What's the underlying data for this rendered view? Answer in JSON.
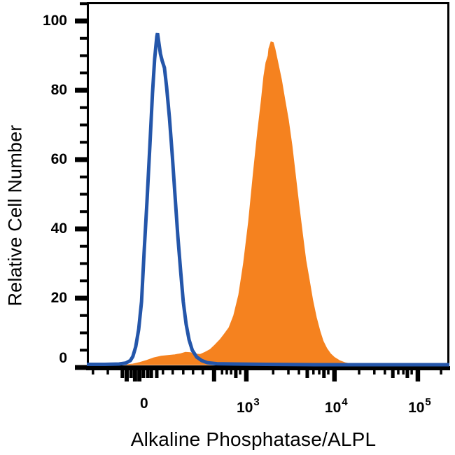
{
  "colors": {
    "blue": "#2456AA",
    "orange": "#F5821F",
    "axis": "#000000",
    "background": "#FFFFFF"
  },
  "y_axis": {
    "title": "Relative Cell Number",
    "ticks": [
      {
        "label": "100",
        "value": 100
      },
      {
        "label": "80",
        "value": 80
      },
      {
        "label": "60",
        "value": 60
      },
      {
        "label": "40",
        "value": 40
      },
      {
        "label": "20",
        "value": 20
      },
      {
        "label": "0",
        "value": 0
      }
    ],
    "minor_tick_step": 5
  },
  "x_axis": {
    "title": "Alkaline Phosphatase/ALPL",
    "scale": "biexponential",
    "major_ticks": [
      {
        "base": "0",
        "sup": "",
        "pos": 0.158,
        "tick": false
      },
      {
        "base": "10",
        "sup": "3",
        "pos": 0.44,
        "tick": true
      },
      {
        "base": "10",
        "sup": "4",
        "pos": 0.683,
        "tick": true
      },
      {
        "base": "10",
        "sup": "5",
        "pos": 0.913,
        "tick": true
      }
    ],
    "minor_ticks": [
      [
        0.017,
        0
      ],
      [
        0.058,
        0
      ],
      [
        0.098,
        1
      ],
      [
        0.11,
        2
      ],
      [
        0.122,
        1
      ],
      [
        0.133,
        2
      ],
      [
        0.145,
        2
      ],
      [
        0.156,
        1
      ],
      [
        0.168,
        1
      ],
      [
        0.178,
        1
      ],
      [
        0.193,
        1
      ],
      [
        0.21,
        0
      ],
      [
        0.237,
        0
      ],
      [
        0.266,
        0
      ],
      [
        0.293,
        0
      ],
      [
        0.32,
        0
      ],
      [
        0.351,
        2
      ],
      [
        0.373,
        0
      ],
      [
        0.386,
        0
      ],
      [
        0.398,
        0
      ],
      [
        0.411,
        1
      ],
      [
        0.423,
        0
      ],
      [
        0.514,
        0
      ],
      [
        0.556,
        0
      ],
      [
        0.585,
        0
      ],
      [
        0.608,
        1
      ],
      [
        0.625,
        0
      ],
      [
        0.641,
        0
      ],
      [
        0.654,
        1
      ],
      [
        0.666,
        0
      ],
      [
        0.751,
        0
      ],
      [
        0.793,
        0
      ],
      [
        0.822,
        0
      ],
      [
        0.844,
        1
      ],
      [
        0.859,
        0
      ],
      [
        0.873,
        0
      ],
      [
        0.884,
        1
      ],
      [
        0.896,
        0
      ],
      [
        0.977,
        0
      ]
    ]
  },
  "chart_data": {
    "type": "area",
    "title": "",
    "xlabel": "Alkaline Phosphatase/ALPL",
    "ylabel": "Relative Cell Number",
    "ylim": [
      0,
      100
    ],
    "x_scale": "biexponential; pos is fraction of axis width",
    "x_axis_landmarks": {
      "0": 0.158,
      "1e3": 0.44,
      "1e4": 0.683,
      "1e5": 0.913
    },
    "grid": false,
    "legend": false,
    "series": [
      {
        "name": "blue-open-histogram",
        "type": "line",
        "color": "#2456AA",
        "stroke_width": 5,
        "peak": {
          "pos": 0.195,
          "value": 96.5
        },
        "points": [
          [
            0.0,
            0.9
          ],
          [
            0.05,
            0.9
          ],
          [
            0.089,
            1.0
          ],
          [
            0.108,
            1.3
          ],
          [
            0.12,
            2.0
          ],
          [
            0.127,
            3.2
          ],
          [
            0.135,
            6
          ],
          [
            0.143,
            11
          ],
          [
            0.151,
            19
          ],
          [
            0.158,
            33
          ],
          [
            0.166,
            48
          ],
          [
            0.174,
            64
          ],
          [
            0.181,
            79
          ],
          [
            0.187,
            89
          ],
          [
            0.193,
            95.5
          ],
          [
            0.195,
            96.5
          ],
          [
            0.199,
            93.5
          ],
          [
            0.203,
            90.5
          ],
          [
            0.208,
            88.5
          ],
          [
            0.214,
            86.5
          ],
          [
            0.22,
            81
          ],
          [
            0.228,
            72
          ],
          [
            0.236,
            61
          ],
          [
            0.243,
            50
          ],
          [
            0.251,
            38
          ],
          [
            0.259,
            27.5
          ],
          [
            0.266,
            19
          ],
          [
            0.274,
            12.5
          ],
          [
            0.282,
            8
          ],
          [
            0.291,
            5
          ],
          [
            0.303,
            3
          ],
          [
            0.317,
            2
          ],
          [
            0.332,
            1.4
          ],
          [
            0.359,
            1.1
          ],
          [
            0.407,
            1.0
          ],
          [
            0.494,
            0.9
          ],
          [
            0.629,
            0.8
          ],
          [
            0.842,
            0.8
          ],
          [
            1.0,
            0.8
          ]
        ]
      },
      {
        "name": "orange-filled-histogram",
        "type": "filled-area",
        "color": "#F5821F",
        "peak": {
          "pos": 0.508,
          "value": 94
        },
        "points": [
          [
            0.093,
            0.0
          ],
          [
            0.108,
            0.5
          ],
          [
            0.127,
            1.0
          ],
          [
            0.147,
            1.5
          ],
          [
            0.166,
            2.1
          ],
          [
            0.185,
            2.8
          ],
          [
            0.205,
            3.3
          ],
          [
            0.224,
            3.5
          ],
          [
            0.243,
            3.7
          ],
          [
            0.259,
            4.0
          ],
          [
            0.272,
            4.4
          ],
          [
            0.286,
            4.3
          ],
          [
            0.299,
            3.9
          ],
          [
            0.313,
            3.8
          ],
          [
            0.326,
            4.4
          ],
          [
            0.34,
            5.2
          ],
          [
            0.353,
            6.5
          ],
          [
            0.367,
            8.0
          ],
          [
            0.378,
            9.5
          ],
          [
            0.392,
            11.5
          ],
          [
            0.405,
            15
          ],
          [
            0.419,
            21
          ],
          [
            0.432,
            30
          ],
          [
            0.446,
            42
          ],
          [
            0.459,
            56
          ],
          [
            0.471,
            68
          ],
          [
            0.481,
            77
          ],
          [
            0.488,
            84
          ],
          [
            0.494,
            88
          ],
          [
            0.5,
            90
          ],
          [
            0.502,
            92
          ],
          [
            0.508,
            94
          ],
          [
            0.514,
            93.8
          ],
          [
            0.519,
            92
          ],
          [
            0.527,
            88
          ],
          [
            0.537,
            83
          ],
          [
            0.546,
            77.5
          ],
          [
            0.556,
            71.5
          ],
          [
            0.566,
            64
          ],
          [
            0.575,
            56
          ],
          [
            0.585,
            47
          ],
          [
            0.595,
            38.5
          ],
          [
            0.604,
            31
          ],
          [
            0.614,
            25
          ],
          [
            0.623,
            19.5
          ],
          [
            0.633,
            14.5
          ],
          [
            0.643,
            10.5
          ],
          [
            0.652,
            7.6
          ],
          [
            0.662,
            5.5
          ],
          [
            0.672,
            4.0
          ],
          [
            0.683,
            2.9
          ],
          [
            0.697,
            2.0
          ],
          [
            0.712,
            1.4
          ],
          [
            0.73,
            1.0
          ],
          [
            0.749,
            0.7
          ],
          [
            0.772,
            0.45
          ],
          [
            0.799,
            0.25
          ],
          [
            0.826,
            0.0
          ]
        ]
      }
    ]
  }
}
